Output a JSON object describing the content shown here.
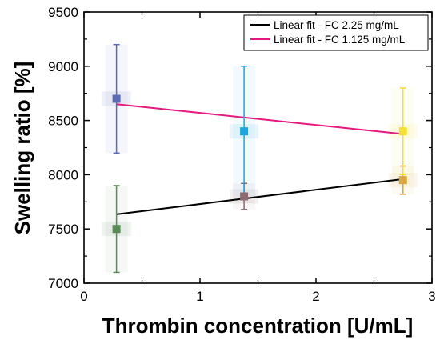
{
  "chart_data": {
    "type": "scatter",
    "xlabel": "Thrombin concentration [U/mL]",
    "ylabel": "Swelling ratio [%]",
    "xlim": [
      0,
      3
    ],
    "ylim": [
      7000,
      9500
    ],
    "xticks": [
      "0",
      "1",
      "2",
      "3"
    ],
    "yticks": [
      "7000",
      "7500",
      "8000",
      "8500",
      "9000",
      "9500"
    ],
    "grid": false,
    "legend_position": "top-right",
    "points": [
      {
        "group": "FC 2.25 mg/mL",
        "x": 0.28,
        "y": 7500,
        "yerr_low": 7100,
        "yerr_high": 7900,
        "color": "#5a8a55"
      },
      {
        "group": "FC 2.25 mg/mL",
        "x": 1.38,
        "y": 7800,
        "yerr_low": 7680,
        "yerr_high": 7920,
        "color": "#8c6a70"
      },
      {
        "group": "FC 2.25 mg/mL",
        "x": 2.75,
        "y": 7950,
        "yerr_low": 7820,
        "yerr_high": 8080,
        "color": "#d9a640"
      },
      {
        "group": "FC 1.125 mg/mL",
        "x": 0.28,
        "y": 8700,
        "yerr_low": 8200,
        "yerr_high": 9200,
        "color": "#5b6bb5"
      },
      {
        "group": "FC 1.125 mg/mL",
        "x": 1.38,
        "y": 8400,
        "yerr_low": 7800,
        "yerr_high": 9000,
        "color": "#1ea5dd"
      },
      {
        "group": "FC 1.125 mg/mL",
        "x": 2.75,
        "y": 8400,
        "yerr_low": 8000,
        "yerr_high": 8800,
        "color": "#f2df38"
      }
    ],
    "series": [
      {
        "name": "Linear fit - FC 2.25 mg/mL",
        "x": [
          0.28,
          2.75
        ],
        "y": [
          7635,
          7960
        ],
        "color": "#000000"
      },
      {
        "name": "Linear fit - FC 1.125 mg/mL",
        "x": [
          0.28,
          2.75
        ],
        "y": [
          8650,
          8375
        ],
        "color": "#e6197f"
      }
    ]
  }
}
